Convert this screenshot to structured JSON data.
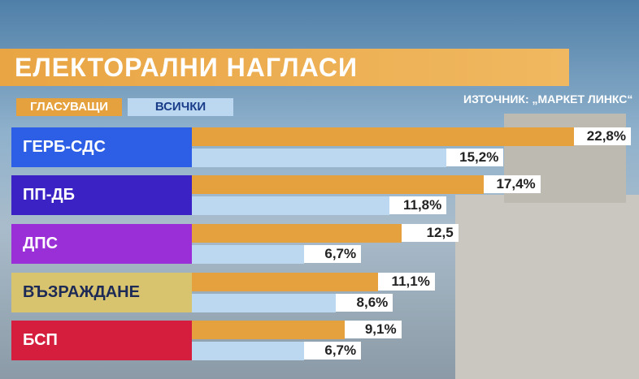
{
  "chart_data": {
    "type": "bar",
    "title": "ЕЛЕКТОРАЛНИ НАГЛАСИ",
    "source": "ИЗТОЧНИК: „МАРКЕТ ЛИНКС“",
    "categories": [
      "ГЕРБ-СДС",
      "ПП-ДБ",
      "ДПС",
      "ВЪЗРАЖДАНЕ",
      "БСП"
    ],
    "category_colors": [
      "#2d5fe6",
      "#3b22c4",
      "#9a2fd8",
      "#d8c46e",
      "#d51e3d"
    ],
    "series": [
      {
        "name": "ГЛАСУВАЩИ",
        "color": "#e5a13d",
        "values": [
          22.8,
          17.4,
          12.5,
          11.1,
          9.1
        ],
        "value_labels": [
          "22,8%",
          "17,4%",
          "12,5",
          "11,1%",
          "9,1%"
        ]
      },
      {
        "name": "ВСИЧКИ",
        "color": "#bcd8f1",
        "values": [
          15.2,
          11.8,
          6.7,
          8.6,
          6.7
        ],
        "value_labels": [
          "15,2%",
          "11,8%",
          "6,7%",
          "8,6%",
          "6,7%"
        ]
      }
    ]
  }
}
